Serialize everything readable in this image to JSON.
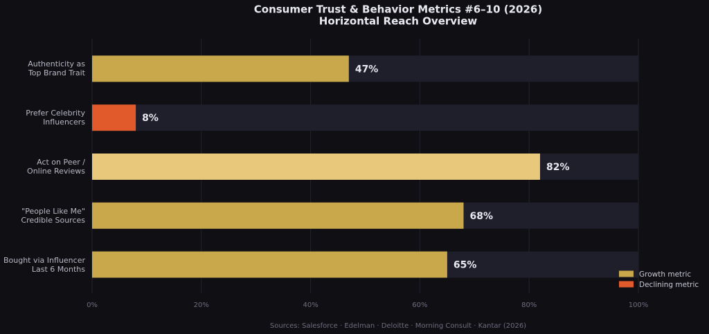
{
  "chart_data": {
    "type": "barh",
    "title": "Consumer Trust & Behavior Metrics #6–10 (2026)",
    "subtitle": "Horizontal Reach Overview",
    "categories": [
      "Authenticity as\nTop Brand Trait",
      "Prefer Celebrity\nInfluencers",
      "Act on Peer /\nOnline Reviews",
      "\"People Like Me\"\nCredible Sources",
      "Bought via Influencer\nLast 6 Months"
    ],
    "values": [
      47,
      8,
      82,
      68,
      65
    ],
    "value_labels": [
      "47%",
      "8%",
      "82%",
      "68%",
      "65%"
    ],
    "colors": [
      "#c9a84c",
      "#e05a2b",
      "#e8c87a",
      "#c9a84c",
      "#c9a84c"
    ],
    "xlim": [
      0,
      100
    ],
    "xticks": [
      {
        "value": 0,
        "label": "0%"
      },
      {
        "value": 20,
        "label": "20%"
      },
      {
        "value": 40,
        "label": "40%"
      },
      {
        "value": 60,
        "label": "60%"
      },
      {
        "value": 80,
        "label": "80%"
      },
      {
        "value": 100,
        "label": "100%"
      }
    ],
    "grid": true,
    "legend_position": "lower right",
    "legend": [
      {
        "name": "Growth metric",
        "color": "#c9a84c"
      },
      {
        "name": "Declining metric",
        "color": "#e05a2b"
      }
    ],
    "source": "Sources: Salesforce · Edelman · Deloitte · Morning Consult · Kantar (2026)"
  }
}
